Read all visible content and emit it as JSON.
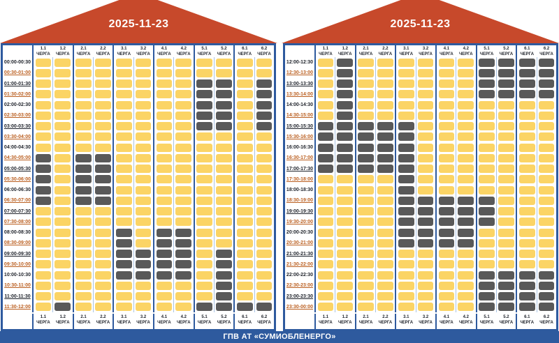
{
  "date": "2025-11-23",
  "footer_bar": "ГПВ АТ «СУМИОБЛЕНЕРГО»",
  "queue_word": "ЧЕРГА",
  "colors": {
    "power_on": "#FBD465",
    "power_off": "#595959",
    "frame_blue": "#2E5A9E",
    "roof_red": "#C7492B",
    "pair_divider_blue": "#A9C3E2",
    "hour_label": "#20242C",
    "half_hour_label": "#BA5E1F"
  },
  "chart_data": {
    "type": "heatmap",
    "title": "2025-11-23",
    "x_categories": [
      "1.1",
      "1.2",
      "2.1",
      "2.2",
      "3.1",
      "3.2",
      "4.1",
      "4.2",
      "5.1",
      "5.2",
      "6.1",
      "6.2"
    ],
    "cell_states": {
      "on": "power on (yellow)",
      "off": "outage (dark gray)"
    },
    "panels": [
      {
        "time_range": "00:00-12:00",
        "rows": [
          {
            "time": "00:00-00:30",
            "off_queues": []
          },
          {
            "time": "00:30-01:00",
            "off_queues": []
          },
          {
            "time": "01:00-01:30",
            "off_queues": [
              "5.1",
              "5.2",
              "6.2"
            ]
          },
          {
            "time": "01:30-02:00",
            "off_queues": [
              "5.1",
              "5.2",
              "6.2"
            ]
          },
          {
            "time": "02:00-02:30",
            "off_queues": [
              "5.1",
              "5.2",
              "6.2"
            ]
          },
          {
            "time": "02:30-03:00",
            "off_queues": [
              "5.1",
              "5.2",
              "6.2"
            ]
          },
          {
            "time": "03:00-03:30",
            "off_queues": [
              "5.1",
              "5.2",
              "6.2"
            ]
          },
          {
            "time": "03:30-04:00",
            "off_queues": []
          },
          {
            "time": "04:00-04:30",
            "off_queues": []
          },
          {
            "time": "04:30-05:00",
            "off_queues": [
              "1.1",
              "2.1",
              "2.2"
            ]
          },
          {
            "time": "05:00-05:30",
            "off_queues": [
              "1.1",
              "2.1",
              "2.2"
            ]
          },
          {
            "time": "05:30-06:00",
            "off_queues": [
              "1.1",
              "2.1",
              "2.2"
            ]
          },
          {
            "time": "06:00-06:30",
            "off_queues": [
              "1.1",
              "2.1",
              "2.2"
            ]
          },
          {
            "time": "06:30-07:00",
            "off_queues": [
              "1.1",
              "2.1",
              "2.2"
            ]
          },
          {
            "time": "07:00-07:30",
            "off_queues": []
          },
          {
            "time": "07:30-08:00",
            "off_queues": []
          },
          {
            "time": "08:00-08:30",
            "off_queues": [
              "3.1",
              "4.1",
              "4.2"
            ]
          },
          {
            "time": "08:30-09:00",
            "off_queues": [
              "3.1",
              "4.1",
              "4.2"
            ]
          },
          {
            "time": "09:00-09:30",
            "off_queues": [
              "3.1",
              "3.2",
              "4.1",
              "4.2",
              "5.2"
            ]
          },
          {
            "time": "09:30-10:00",
            "off_queues": [
              "3.1",
              "3.2",
              "4.1",
              "4.2",
              "5.2"
            ]
          },
          {
            "time": "10:00-10:30",
            "off_queues": [
              "3.1",
              "3.2",
              "4.1",
              "4.2",
              "5.2"
            ]
          },
          {
            "time": "10:30-11:00",
            "off_queues": [
              "5.2"
            ]
          },
          {
            "time": "11:00-11:30",
            "off_queues": [
              "5.2"
            ]
          },
          {
            "time": "11:30-12:00",
            "off_queues": [
              "1.2",
              "5.1",
              "5.2",
              "6.1",
              "6.2"
            ]
          }
        ]
      },
      {
        "time_range": "12:00-24:00",
        "rows": [
          {
            "time": "12:00-12:30",
            "off_queues": [
              "1.2",
              "5.1",
              "5.2",
              "6.1",
              "6.2"
            ]
          },
          {
            "time": "12:30-13:00",
            "off_queues": [
              "1.2",
              "5.1",
              "5.2",
              "6.1",
              "6.2"
            ]
          },
          {
            "time": "13:00-13:30",
            "off_queues": [
              "1.2",
              "5.1",
              "5.2",
              "6.1",
              "6.2"
            ]
          },
          {
            "time": "13:30-14:00",
            "off_queues": [
              "1.2",
              "5.1",
              "5.2",
              "6.1",
              "6.2"
            ]
          },
          {
            "time": "14:00-14:30",
            "off_queues": [
              "1.2"
            ]
          },
          {
            "time": "14:30-15:00",
            "off_queues": [
              "1.2"
            ]
          },
          {
            "time": "15:00-15:30",
            "off_queues": [
              "1.1",
              "1.2",
              "2.1",
              "2.2",
              "3.1"
            ]
          },
          {
            "time": "15:30-16:00",
            "off_queues": [
              "1.1",
              "1.2",
              "2.1",
              "2.2",
              "3.1"
            ]
          },
          {
            "time": "16:00-16:30",
            "off_queues": [
              "1.1",
              "1.2",
              "2.1",
              "2.2",
              "3.1"
            ]
          },
          {
            "time": "16:30-17:00",
            "off_queues": [
              "1.1",
              "1.2",
              "2.1",
              "2.2",
              "3.1"
            ]
          },
          {
            "time": "17:00-17:30",
            "off_queues": [
              "1.1",
              "1.2",
              "2.1",
              "2.2",
              "3.1"
            ]
          },
          {
            "time": "17:30-18:00",
            "off_queues": [
              "3.1"
            ]
          },
          {
            "time": "18:00-18:30",
            "off_queues": [
              "3.1"
            ]
          },
          {
            "time": "18:30-19:00",
            "off_queues": [
              "3.1",
              "3.2",
              "4.1",
              "4.2",
              "5.1"
            ]
          },
          {
            "time": "19:00-19:30",
            "off_queues": [
              "3.1",
              "3.2",
              "4.1",
              "4.2",
              "5.1"
            ]
          },
          {
            "time": "19:30-20:00",
            "off_queues": [
              "3.1",
              "3.2",
              "4.1",
              "4.2",
              "5.1"
            ]
          },
          {
            "time": "20:00-20:30",
            "off_queues": [
              "3.1",
              "3.2",
              "4.1",
              "4.2"
            ]
          },
          {
            "time": "20:30-21:00",
            "off_queues": [
              "3.1",
              "3.2",
              "4.1",
              "4.2"
            ]
          },
          {
            "time": "21:00-21:30",
            "off_queues": []
          },
          {
            "time": "21:30-22:00",
            "off_queues": []
          },
          {
            "time": "22:00-22:30",
            "off_queues": [
              "5.1",
              "5.2",
              "6.1",
              "6.2"
            ]
          },
          {
            "time": "22:30-23:00",
            "off_queues": [
              "5.1",
              "5.2",
              "6.1",
              "6.2"
            ]
          },
          {
            "time": "23:00-23:30",
            "off_queues": [
              "5.1",
              "5.2",
              "6.1",
              "6.2"
            ]
          },
          {
            "time": "23:30-00:00",
            "off_queues": [
              "5.1",
              "5.2",
              "6.1",
              "6.2"
            ]
          }
        ]
      }
    ]
  }
}
